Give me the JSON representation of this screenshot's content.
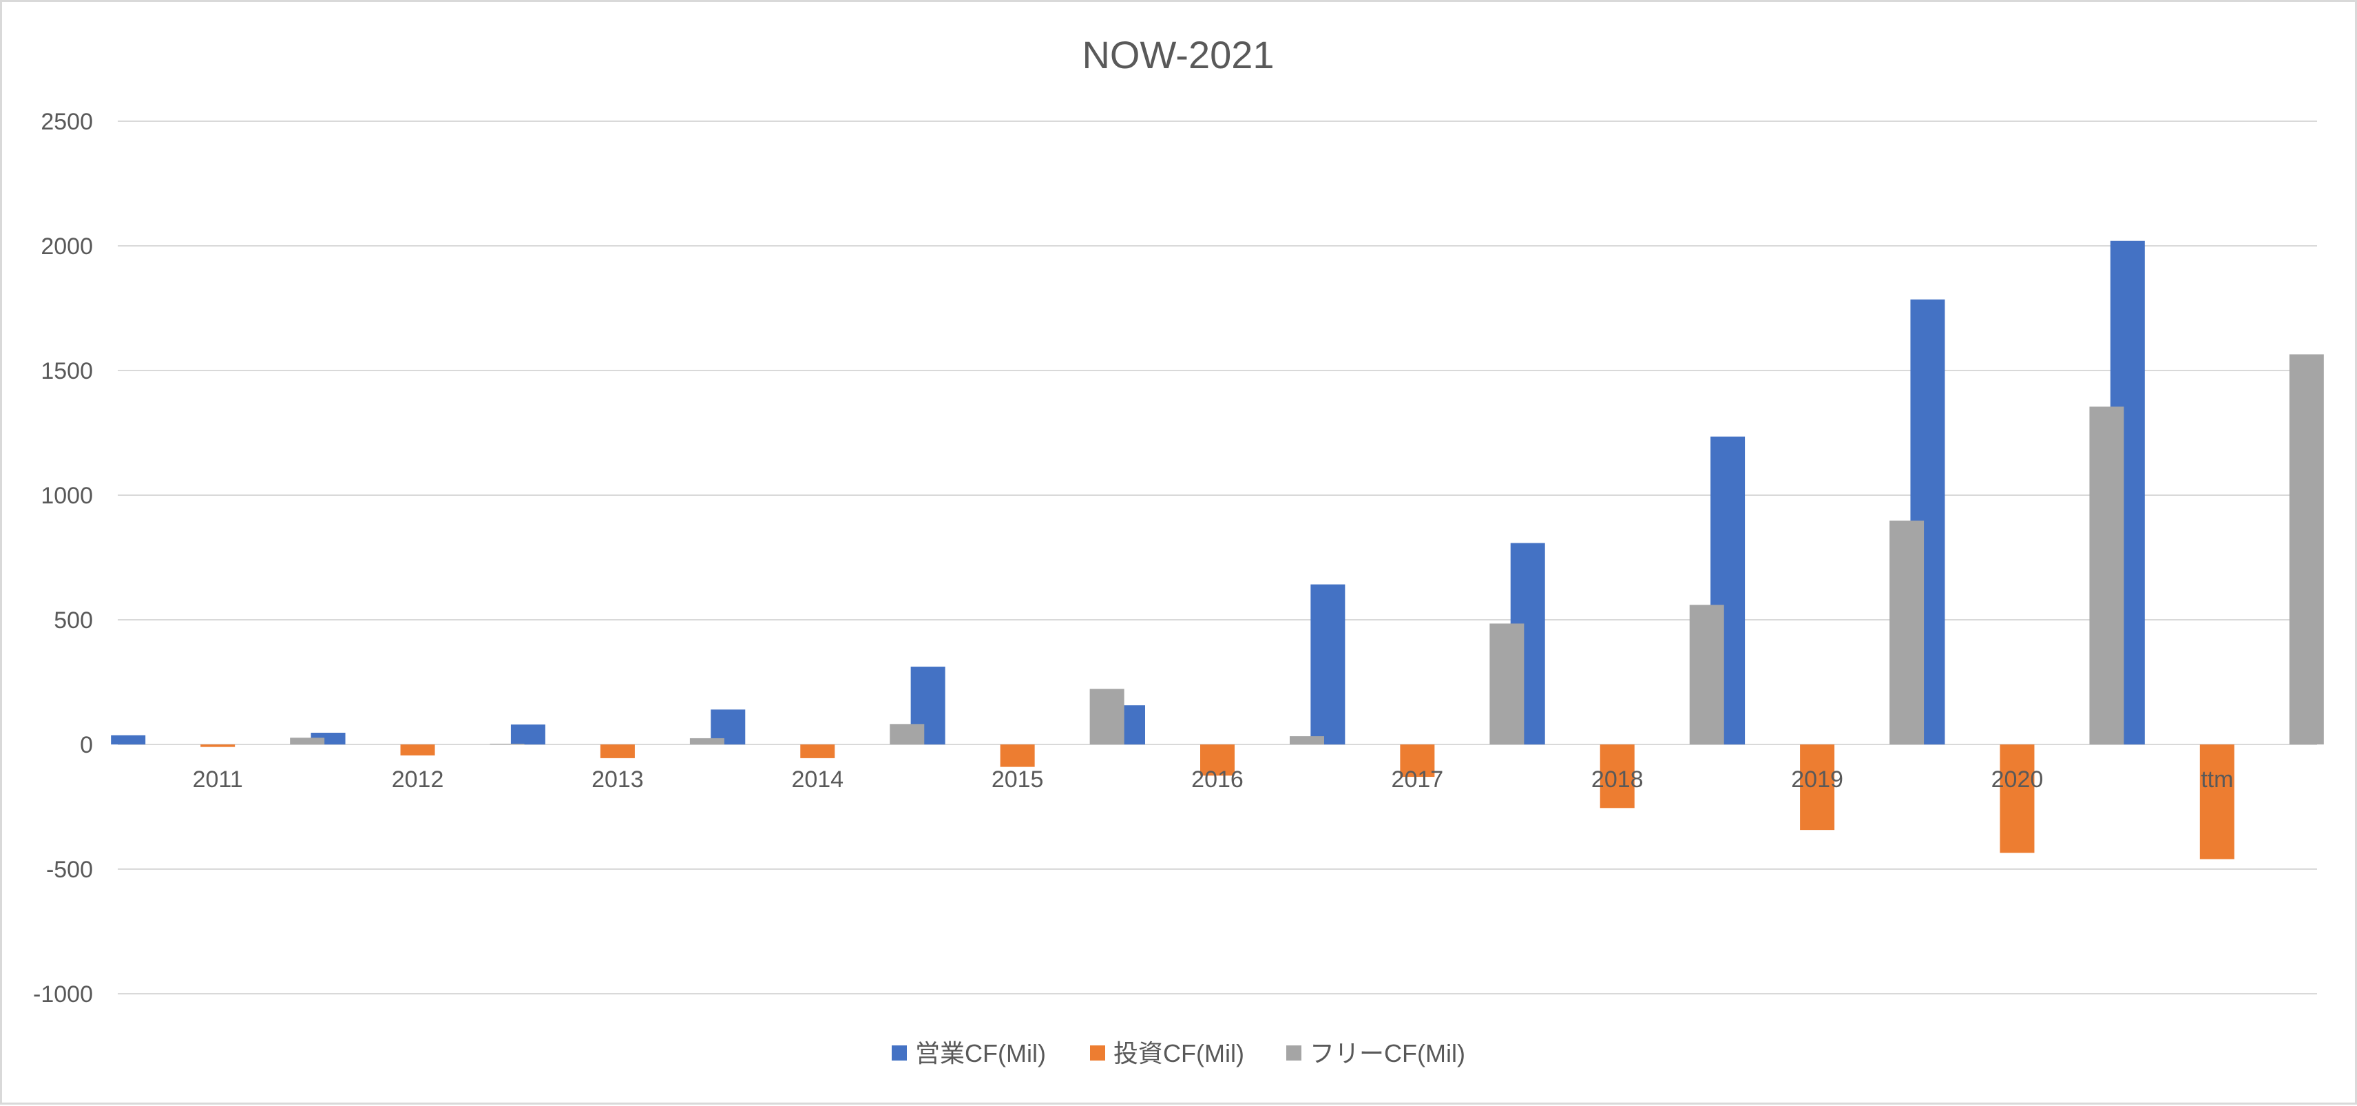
{
  "chart_data": {
    "type": "bar",
    "title": "NOW-2021",
    "xlabel": "",
    "ylabel": "",
    "categories": [
      "2011",
      "2012",
      "2013",
      "2014",
      "2015",
      "2016",
      "2017",
      "2018",
      "2019",
      "2020",
      "ttm"
    ],
    "series": [
      {
        "name": "営業CF(Mil)",
        "color": "#4472c4",
        "values": [
          37,
          47,
          80,
          140,
          312,
          157,
          642,
          808,
          1235,
          1785,
          2020
        ]
      },
      {
        "name": "投資CF(Mil)",
        "color": "#ed7d31",
        "values": [
          -10,
          -44,
          -55,
          -55,
          -90,
          -125,
          -130,
          -255,
          -343,
          -435,
          -460
        ]
      },
      {
        "name": "フリーCF(Mil)",
        "color": "#a5a5a5",
        "values": [
          27,
          3,
          25,
          82,
          223,
          33,
          485,
          560,
          898,
          1355,
          1565
        ]
      }
    ],
    "ylim": [
      -1000,
      2500
    ],
    "yticks": [
      2500,
      2000,
      1500,
      1000,
      500,
      0,
      -500,
      -1000
    ],
    "grid": true,
    "gridline_color": "#d9d9d9",
    "legend_position": "bottom"
  }
}
